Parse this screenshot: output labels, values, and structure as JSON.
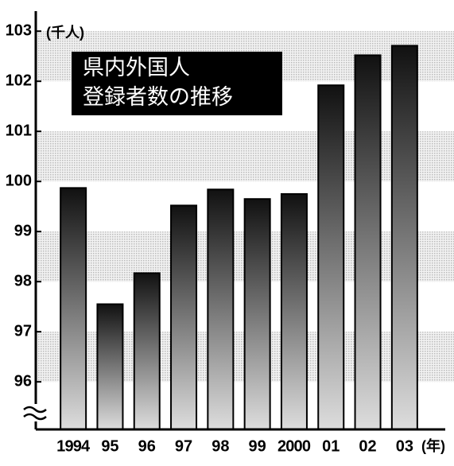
{
  "chart_data": {
    "type": "bar",
    "title": [
      "県内外国人",
      "登録者数の推移"
    ],
    "y_unit": "(千人)",
    "x_unit": "(年)",
    "categories": [
      "1994",
      "95",
      "96",
      "97",
      "98",
      "99",
      "2000",
      "01",
      "02",
      "03"
    ],
    "values": [
      99.87,
      97.55,
      98.17,
      99.52,
      99.84,
      99.65,
      99.75,
      101.92,
      102.52,
      102.71
    ],
    "ylim": [
      95.05,
      103.4
    ],
    "yticks": [
      96,
      97,
      98,
      99,
      100,
      101,
      102,
      103
    ],
    "grid": "bands",
    "color": "#000000"
  }
}
